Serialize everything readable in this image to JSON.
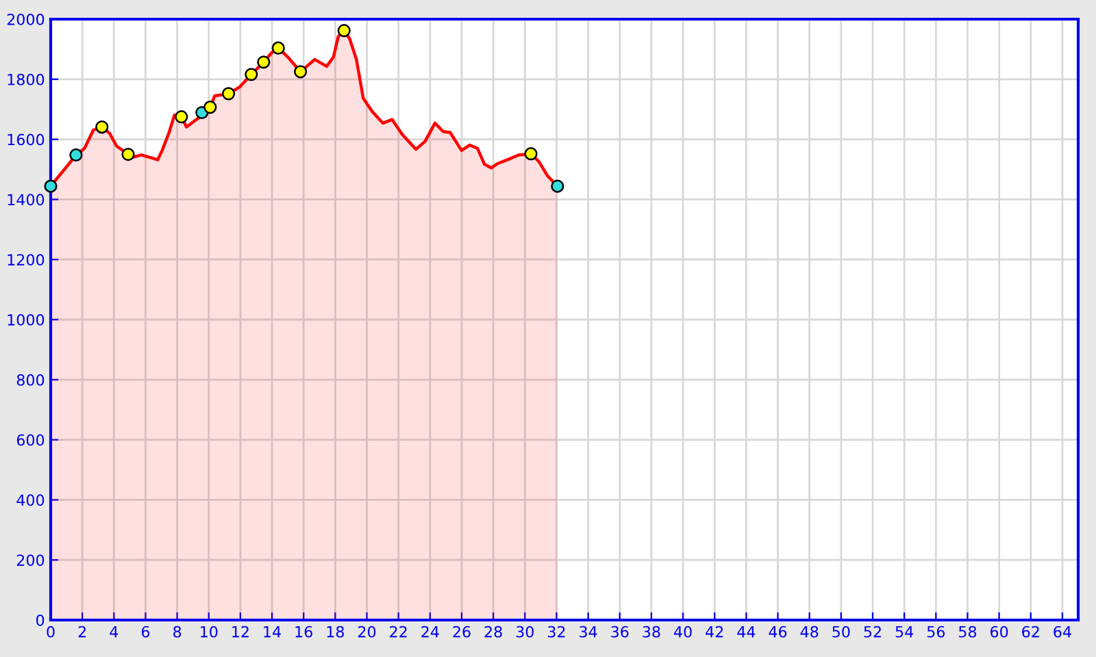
{
  "chart_data": {
    "type": "area",
    "xlim": [
      0,
      65
    ],
    "ylim": [
      0,
      2000
    ],
    "xticks": [
      0,
      2,
      4,
      6,
      8,
      10,
      12,
      14,
      16,
      18,
      20,
      22,
      24,
      26,
      28,
      30,
      32,
      34,
      36,
      38,
      40,
      42,
      44,
      46,
      48,
      50,
      52,
      54,
      56,
      58,
      60,
      62,
      64
    ],
    "yticks": [
      0,
      200,
      400,
      600,
      800,
      1000,
      1200,
      1400,
      1600,
      1800,
      2000
    ],
    "grid": true,
    "series": [
      {
        "color": "#ff0000",
        "marker": "none",
        "x": [
          0,
          1.13,
          1.6,
          2.14,
          2.7,
          3.24,
          3.73,
          4.16,
          4.9,
          5.17,
          5.75,
          6.77,
          7.05,
          7.49,
          7.83,
          8.27,
          8.59,
          9.37,
          9.57,
          10.09,
          10.38,
          11.25,
          11.97,
          12.69,
          13.47,
          13.99,
          14.4,
          15.0,
          15.8,
          16.7,
          17.46,
          17.89,
          18.19,
          18.56,
          18.91,
          19.34,
          19.77,
          20.35,
          21.02,
          21.6,
          22.24,
          23.1,
          23.68,
          24.31,
          24.83,
          25.27,
          25.99,
          26.51,
          27.0,
          27.44,
          27.87,
          28.3,
          29.03,
          29.6,
          30.38,
          30.9,
          31.42,
          32.06
        ],
        "values": [
          1444,
          1517,
          1548,
          1570,
          1631,
          1641,
          1620,
          1578,
          1550,
          1540,
          1548,
          1532,
          1563,
          1623,
          1681,
          1675,
          1641,
          1672,
          1689,
          1707,
          1745,
          1752,
          1775,
          1816,
          1857,
          1889,
          1904,
          1874,
          1825,
          1866,
          1843,
          1874,
          1942,
          1962,
          1935,
          1866,
          1737,
          1692,
          1654,
          1666,
          1616,
          1567,
          1593,
          1654,
          1626,
          1623,
          1563,
          1581,
          1570,
          1517,
          1505,
          1520,
          1535,
          1548,
          1552,
          1525,
          1479,
          1444
        ]
      },
      {
        "type": "scatter",
        "color": "#33dddd",
        "marker": "circle",
        "x": [
          0,
          1.6,
          9.57,
          32.06
        ],
        "values": [
          1444,
          1548,
          1689,
          1444
        ]
      },
      {
        "type": "scatter",
        "color": "#ffff00",
        "marker": "circle",
        "x": [
          3.24,
          4.9,
          8.27,
          10.09,
          11.25,
          12.69,
          13.47,
          14.4,
          15.8,
          18.56,
          30.38
        ],
        "values": [
          1641,
          1550,
          1675,
          1707,
          1752,
          1816,
          1857,
          1904,
          1825,
          1962,
          1552
        ]
      }
    ]
  }
}
